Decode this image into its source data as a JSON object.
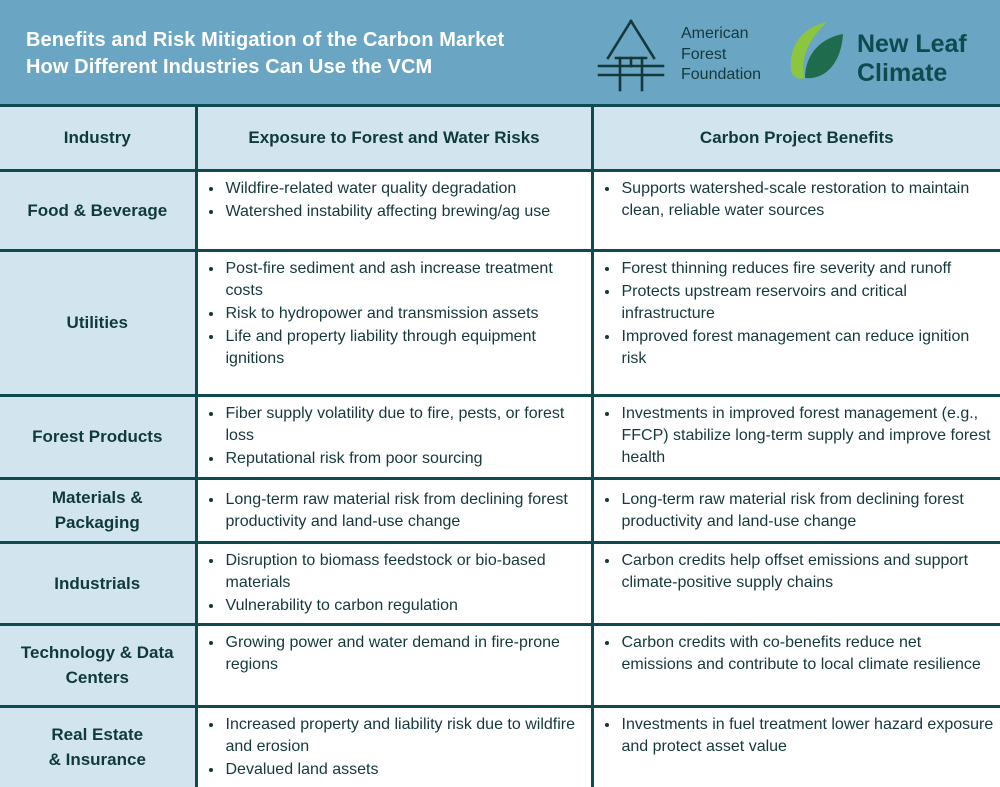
{
  "header": {
    "title_line1": "Benefits and Risk Mitigation of the Carbon Market",
    "title_line2": "How Different Industries Can Use the VCM",
    "partners": [
      {
        "logo_icon": "aff-tree-icon",
        "name_lines": [
          "American",
          "Forest",
          "Foundation"
        ]
      },
      {
        "logo_icon": "leaf-icon",
        "name_lines": [
          "New Leaf",
          "Climate"
        ]
      }
    ]
  },
  "colors": {
    "dark_teal": "#0f4a4f",
    "header_blue": "#6aa6c3",
    "cell_blue": "#d2e5ef",
    "leaf_light": "#8cc63f",
    "leaf_dark": "#1e6b4e"
  },
  "columns": [
    "Industry",
    "Exposure to Forest and Water Risks",
    "Carbon Project Benefits"
  ],
  "rows": [
    {
      "industry": [
        "Food & Beverage"
      ],
      "risks": [
        "Wildfire-related water quality degradation",
        "Watershed instability affecting brewing/ag use"
      ],
      "benefits": [
        "Supports watershed-scale restoration to maintain clean, reliable water sources"
      ]
    },
    {
      "industry": [
        "Utilities"
      ],
      "risks": [
        "Post-fire sediment and ash increase treatment costs",
        "Risk to hydropower and transmission assets",
        "Life and property liability through equipment ignitions"
      ],
      "benefits": [
        "Forest thinning reduces fire severity and runoff",
        "Protects upstream reservoirs and critical infrastructure",
        "Improved forest management can reduce ignition risk"
      ]
    },
    {
      "industry": [
        "Forest Products"
      ],
      "risks": [
        "Fiber supply volatility due to fire, pests, or forest loss",
        "Reputational risk from poor sourcing"
      ],
      "benefits": [
        " Investments in improved forest management (e.g., FFCP) stabilize long-term supply and improve forest health"
      ]
    },
    {
      "industry": [
        "Materials &",
        "Packaging"
      ],
      "risks": [
        "Long-term raw material risk from declining forest productivity and land-use change"
      ],
      "benefits": [
        "Long-term raw material risk from declining forest productivity and land-use change"
      ]
    },
    {
      "industry": [
        "Industrials"
      ],
      "risks": [
        "Disruption to biomass feedstock or bio-based materials",
        "Vulnerability to carbon regulation"
      ],
      "benefits": [
        " Carbon credits help offset emissions and support climate-positive supply chains"
      ]
    },
    {
      "industry": [
        "Technology & Data",
        "Centers"
      ],
      "risks": [
        " Growing power and water demand in fire-prone regions"
      ],
      "benefits": [
        "Carbon credits with co-benefits reduce net emissions and contribute to local climate resilience"
      ]
    },
    {
      "industry": [
        "Real Estate",
        "& Insurance"
      ],
      "risks": [
        "Increased property and liability risk due to wildfire and erosion",
        "Devalued land assets"
      ],
      "benefits": [
        "Investments in fuel treatment lower hazard exposure and protect asset value"
      ]
    }
  ]
}
